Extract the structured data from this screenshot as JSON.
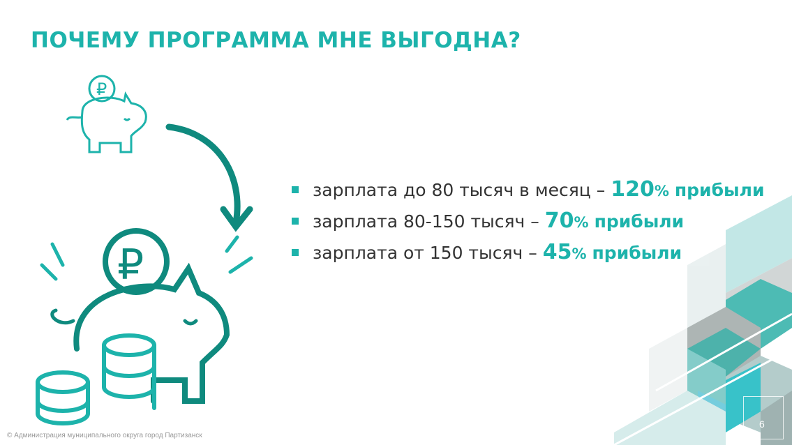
{
  "title": "ПОЧЕМУ ПРОГРАММА МНЕ ВЫГОДНА?",
  "items": [
    {
      "text": "зарплата до 80 тысяч в месяц –",
      "value": "120",
      "unit": "%",
      "suffix": "прибыли"
    },
    {
      "text": "зарплата 80-150 тысяч –",
      "value": "70",
      "unit": "%",
      "suffix": "прибыли"
    },
    {
      "text": "зарплата от 150 тысяч –",
      "value": "45",
      "unit": "%",
      "suffix": "прибыли"
    }
  ],
  "footer": "© Администрация муниципального округа город Партизанск",
  "page_number": "6",
  "colors": {
    "accent": "#1db3ab",
    "dark_accent": "#0f8a7e",
    "text": "#333333"
  },
  "icons": [
    "piggy-bank-icon",
    "ruble-coin-icon",
    "arrow-icon",
    "coin-stack-icon",
    "city-emblem-icon"
  ]
}
